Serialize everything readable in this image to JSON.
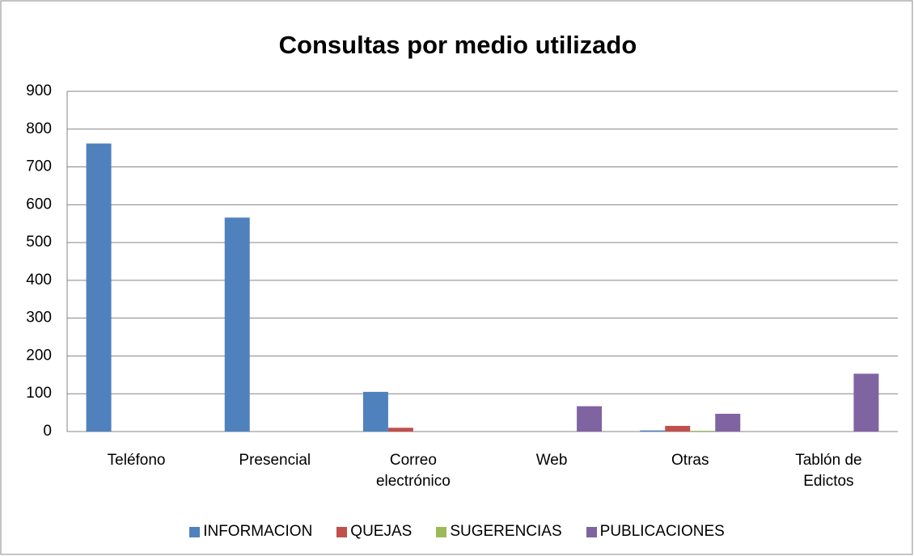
{
  "chart_data": {
    "type": "bar",
    "title": "Consultas por medio utilizado",
    "categories": [
      "Teléfono",
      "Presencial",
      "Correo electrónico",
      "Web",
      "Otras",
      "Tablón de Edictos"
    ],
    "series": [
      {
        "name": "INFORMACION",
        "color": "#4f81bd",
        "values": [
          762,
          566,
          105,
          0,
          3,
          0
        ]
      },
      {
        "name": "QUEJAS",
        "color": "#c0504d",
        "values": [
          0,
          0,
          10,
          0,
          15,
          0
        ]
      },
      {
        "name": "SUGERENCIAS",
        "color": "#9bbb59",
        "values": [
          0,
          0,
          0,
          0,
          2,
          0
        ]
      },
      {
        "name": "PUBLICACIONES",
        "color": "#8064a2",
        "values": [
          0,
          0,
          0,
          67,
          47,
          153
        ]
      }
    ],
    "ylim": [
      0,
      900
    ],
    "yticks": [
      0,
      100,
      200,
      300,
      400,
      500,
      600,
      700,
      800,
      900
    ],
    "grid": true,
    "legend": "bottom"
  }
}
